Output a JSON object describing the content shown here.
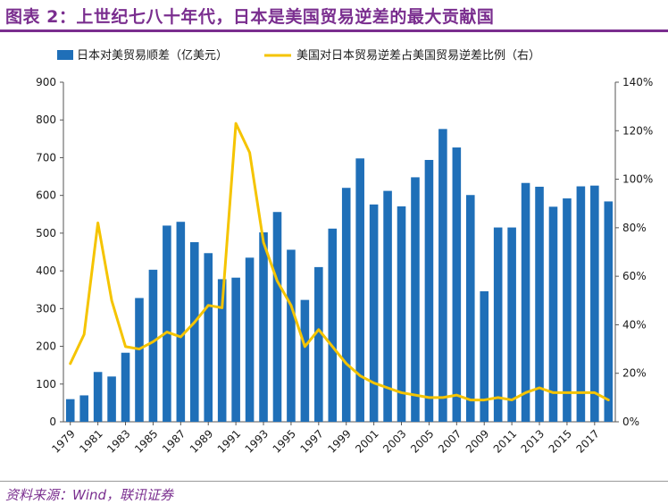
{
  "title": "图表 2：上世纪七八十年代，日本是美国贸易逆差的最大贡献国",
  "source": "资料来源：Wind，联讯证券",
  "colors": {
    "bar": "#1f6fb8",
    "line": "#f5c400",
    "accent": "#7a2e8f"
  },
  "chart_data": {
    "type": "bar",
    "categories": [
      "1979",
      "1980",
      "1981",
      "1982",
      "1983",
      "1984",
      "1985",
      "1986",
      "1987",
      "1988",
      "1989",
      "1990",
      "1991",
      "1992",
      "1993",
      "1994",
      "1995",
      "1996",
      "1997",
      "1998",
      "1999",
      "2000",
      "2001",
      "2002",
      "2003",
      "2004",
      "2005",
      "2006",
      "2007",
      "2008",
      "2009",
      "2010",
      "2011",
      "2012",
      "2013",
      "2014",
      "2015",
      "2016",
      "2017",
      "2018"
    ],
    "x_tick_labels": [
      "1979",
      "1981",
      "1983",
      "1985",
      "1987",
      "1989",
      "1991",
      "1993",
      "1995",
      "1997",
      "1999",
      "2001",
      "2003",
      "2005",
      "2007",
      "2009",
      "2011",
      "2013",
      "2015",
      "2017"
    ],
    "series": [
      {
        "name": "日本对美贸易顺差（亿美元）",
        "type": "bar",
        "axis": "left",
        "values": [
          60,
          70,
          132,
          120,
          183,
          328,
          403,
          520,
          530,
          476,
          447,
          378,
          382,
          435,
          502,
          556,
          456,
          323,
          410,
          512,
          620,
          698,
          576,
          612,
          571,
          648,
          694,
          776,
          727,
          601,
          346,
          515,
          515,
          633,
          623,
          570,
          592,
          624,
          626,
          584
        ]
      },
      {
        "name": "美国对日本贸易逆差占美国贸易逆差比例（右）",
        "type": "line",
        "axis": "right",
        "values": [
          0.24,
          0.36,
          0.82,
          0.5,
          0.31,
          0.3,
          0.33,
          0.37,
          0.35,
          0.41,
          0.48,
          0.47,
          1.23,
          1.11,
          0.74,
          0.58,
          0.48,
          0.31,
          0.38,
          0.31,
          0.24,
          0.19,
          0.16,
          0.14,
          0.12,
          0.11,
          0.1,
          0.1,
          0.11,
          0.09,
          0.09,
          0.1,
          0.09,
          0.12,
          0.14,
          0.12,
          0.12,
          0.12,
          0.12,
          0.09
        ]
      }
    ],
    "y_left": {
      "ticks": [
        "0",
        "100",
        "200",
        "300",
        "400",
        "500",
        "600",
        "700",
        "800",
        "900"
      ],
      "ylim": [
        0,
        900
      ]
    },
    "y_right": {
      "ticks": [
        "0%",
        "20%",
        "40%",
        "60%",
        "80%",
        "100%",
        "120%",
        "140%"
      ],
      "ylim": [
        0,
        1.4
      ]
    },
    "legend": "top",
    "grid": false
  }
}
